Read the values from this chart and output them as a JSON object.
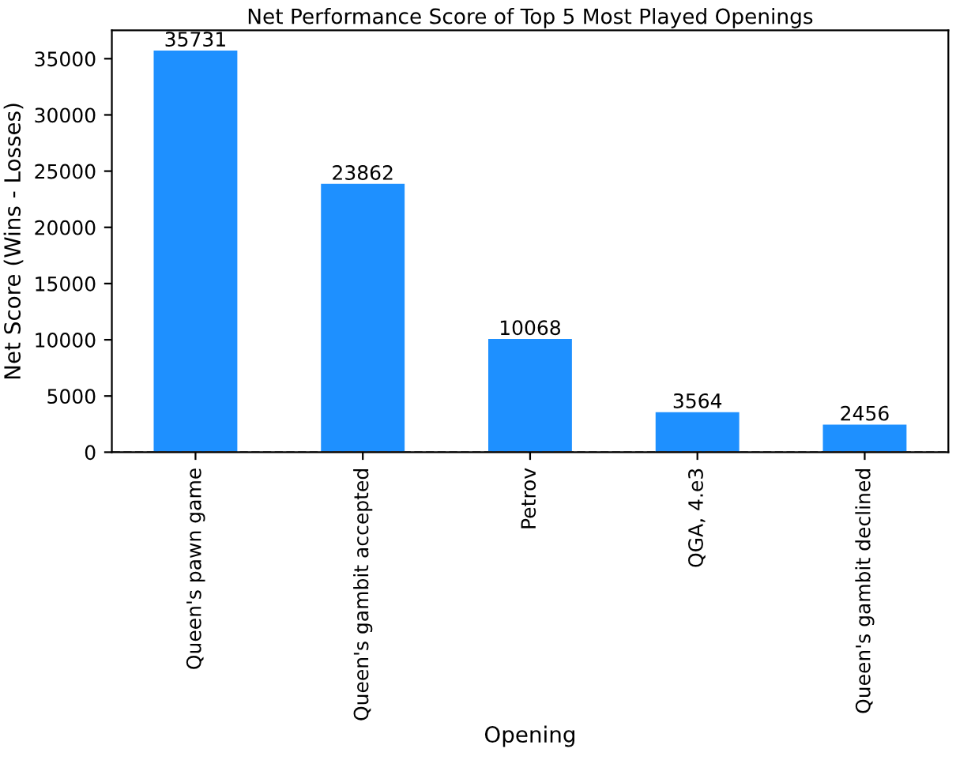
{
  "chart_data": {
    "type": "bar",
    "title": "Net Performance Score of Top 5 Most Played Openings",
    "xlabel": "Opening",
    "ylabel": "Net Score (Wins - Losses)",
    "categories": [
      "Queen's pawn game",
      "Queen's gambit accepted",
      "Petrov",
      "QGA, 4.e3",
      "Queen's gambit declined"
    ],
    "values": [
      35731,
      23862,
      10068,
      3564,
      2456
    ],
    "color": "#1e90ff",
    "data_labels": true,
    "ylim": [
      0,
      37517
    ],
    "yticks": [
      0,
      5000,
      10000,
      15000,
      20000,
      25000,
      30000,
      35000
    ],
    "grid": false,
    "ref_lines": [
      {
        "axis": "y",
        "value": 0,
        "color": "#808080",
        "line_style": "dashed"
      }
    ]
  }
}
